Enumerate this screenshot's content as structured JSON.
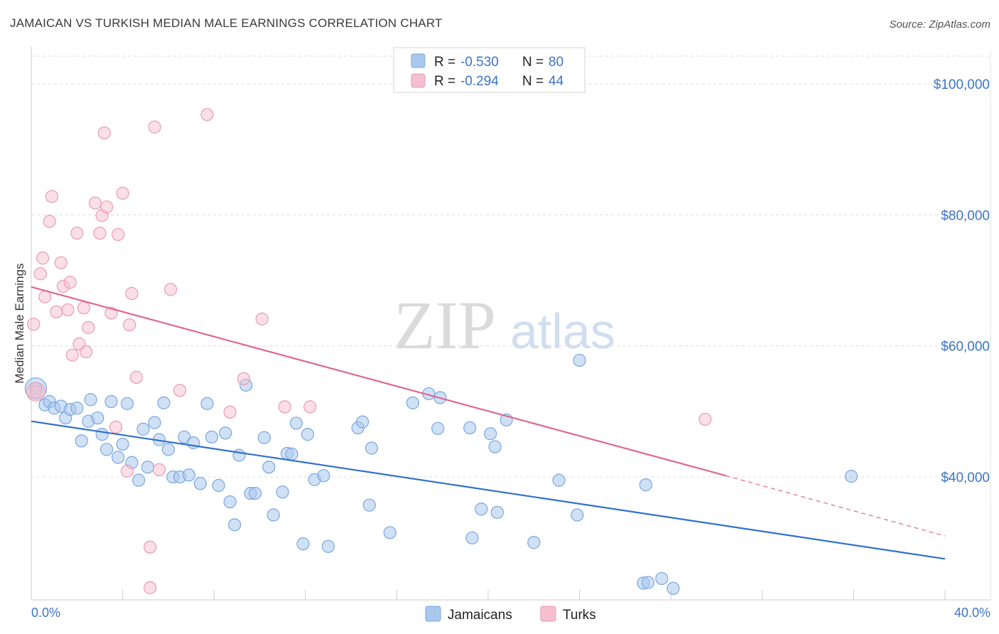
{
  "title": "JAMAICAN VS TURKISH MEDIAN MALE EARNINGS CORRELATION CHART",
  "source": "Source: ZipAtlas.com",
  "watermark": {
    "zip": "ZIP",
    "atlas": "atlas"
  },
  "colors": {
    "jamaicans_fill": "#a9c8ee",
    "jamaicans_stroke": "#7aa6de",
    "jamaicans_line": "#2f6fce",
    "turks_fill": "#f6bfcf",
    "turks_stroke": "#e99bb3",
    "turks_line": "#e06590",
    "tick_text": "#3d74c6",
    "grid": "#dcdcdc"
  },
  "legend": {
    "rows": [
      {
        "r_label": "R =",
        "r_value": "-0.530",
        "n_label": "N =",
        "n_value": "80"
      },
      {
        "r_label": "R =",
        "r_value": "-0.294",
        "n_label": "N =",
        "n_value": "44"
      }
    ]
  },
  "chart_data": {
    "type": "scatter",
    "ylabel": "Median Male Earnings",
    "xlim": [
      0,
      40
    ],
    "ylim": [
      22000,
      104000
    ],
    "x_tick_labels": {
      "left": "0.0%",
      "right": "40.0%"
    },
    "y_ticks": [
      {
        "value": 100000,
        "label": "$100,000"
      },
      {
        "value": 80000,
        "label": "$80,000"
      },
      {
        "value": 60000,
        "label": "$60,000"
      },
      {
        "value": 40000,
        "label": "$40,000"
      }
    ],
    "grid": true,
    "legend_position": "top-center",
    "series": [
      {
        "name": "Jamaicans",
        "trend": {
          "x0": 0,
          "y0": 48500,
          "x1": 40,
          "y1": 27500
        },
        "points": [
          [
            0.2,
            53500
          ],
          [
            0.6,
            51000
          ],
          [
            0.8,
            51500
          ],
          [
            1.0,
            50500
          ],
          [
            1.3,
            50800
          ],
          [
            1.5,
            49000
          ],
          [
            1.7,
            50300
          ],
          [
            2.0,
            50500
          ],
          [
            2.2,
            45500
          ],
          [
            2.5,
            48500
          ],
          [
            2.6,
            51800
          ],
          [
            2.9,
            49000
          ],
          [
            3.1,
            46500
          ],
          [
            3.3,
            44200
          ],
          [
            3.5,
            51500
          ],
          [
            3.8,
            43000
          ],
          [
            4.0,
            45000
          ],
          [
            4.2,
            51200
          ],
          [
            4.4,
            42200
          ],
          [
            4.7,
            39500
          ],
          [
            4.9,
            47300
          ],
          [
            5.1,
            41500
          ],
          [
            5.4,
            48300
          ],
          [
            5.6,
            45700
          ],
          [
            5.8,
            51300
          ],
          [
            6.0,
            44200
          ],
          [
            6.2,
            40000
          ],
          [
            6.5,
            40000
          ],
          [
            6.7,
            46100
          ],
          [
            6.9,
            40300
          ],
          [
            7.1,
            45200
          ],
          [
            7.4,
            39000
          ],
          [
            7.7,
            51200
          ],
          [
            7.9,
            46100
          ],
          [
            8.2,
            38700
          ],
          [
            8.5,
            46700
          ],
          [
            8.7,
            36200
          ],
          [
            8.9,
            32700
          ],
          [
            9.1,
            43300
          ],
          [
            9.4,
            54000
          ],
          [
            9.6,
            37500
          ],
          [
            9.8,
            37500
          ],
          [
            10.2,
            46000
          ],
          [
            10.4,
            41500
          ],
          [
            10.6,
            34200
          ],
          [
            11.0,
            37700
          ],
          [
            11.2,
            43600
          ],
          [
            11.4,
            43500
          ],
          [
            11.6,
            48200
          ],
          [
            11.9,
            29800
          ],
          [
            12.1,
            46500
          ],
          [
            12.4,
            39600
          ],
          [
            12.8,
            40200
          ],
          [
            13.0,
            29400
          ],
          [
            14.3,
            47500
          ],
          [
            14.5,
            48400
          ],
          [
            14.8,
            35700
          ],
          [
            14.9,
            44400
          ],
          [
            15.7,
            31500
          ],
          [
            16.7,
            51300
          ],
          [
            17.4,
            52700
          ],
          [
            17.8,
            47400
          ],
          [
            17.9,
            52100
          ],
          [
            19.3,
            30700
          ],
          [
            19.2,
            47500
          ],
          [
            19.7,
            35100
          ],
          [
            20.1,
            46600
          ],
          [
            20.3,
            44600
          ],
          [
            20.4,
            34600
          ],
          [
            20.8,
            48700
          ],
          [
            22.0,
            30000
          ],
          [
            23.1,
            39500
          ],
          [
            23.9,
            34200
          ],
          [
            24.0,
            57800
          ],
          [
            26.9,
            38800
          ],
          [
            26.8,
            23800
          ],
          [
            27.0,
            23900
          ],
          [
            27.6,
            24500
          ],
          [
            28.1,
            23000
          ],
          [
            35.9,
            40100
          ]
        ]
      },
      {
        "name": "Turks",
        "trend": {
          "x0": 0,
          "y0": 69000,
          "x1": 30.4,
          "y1": 40200,
          "dash_x1": 40,
          "dash_y1": 31000
        },
        "points": [
          [
            0.1,
            63300
          ],
          [
            0.2,
            53000
          ],
          [
            0.4,
            71000
          ],
          [
            0.5,
            73400
          ],
          [
            0.6,
            67500
          ],
          [
            0.8,
            79000
          ],
          [
            0.9,
            82800
          ],
          [
            1.1,
            65200
          ],
          [
            1.3,
            72700
          ],
          [
            1.4,
            69100
          ],
          [
            1.6,
            65500
          ],
          [
            1.7,
            69700
          ],
          [
            1.8,
            58600
          ],
          [
            2.0,
            77200
          ],
          [
            2.1,
            60300
          ],
          [
            2.3,
            65800
          ],
          [
            2.4,
            59100
          ],
          [
            2.5,
            62800
          ],
          [
            2.8,
            81800
          ],
          [
            3.0,
            77200
          ],
          [
            3.1,
            79900
          ],
          [
            3.2,
            92500
          ],
          [
            3.3,
            81200
          ],
          [
            3.5,
            65000
          ],
          [
            3.7,
            47600
          ],
          [
            3.8,
            77000
          ],
          [
            4.0,
            83300
          ],
          [
            4.2,
            40900
          ],
          [
            4.3,
            63200
          ],
          [
            4.4,
            68000
          ],
          [
            4.6,
            55200
          ],
          [
            5.2,
            29300
          ],
          [
            5.2,
            23100
          ],
          [
            5.4,
            93400
          ],
          [
            5.6,
            41100
          ],
          [
            6.1,
            68600
          ],
          [
            6.5,
            53200
          ],
          [
            7.7,
            95300
          ],
          [
            8.7,
            49900
          ],
          [
            9.3,
            55000
          ],
          [
            10.1,
            64100
          ],
          [
            11.1,
            50700
          ],
          [
            12.2,
            50700
          ],
          [
            29.5,
            48800
          ]
        ]
      }
    ]
  },
  "bottom_legend": [
    {
      "label": "Jamaicans"
    },
    {
      "label": "Turks"
    }
  ]
}
